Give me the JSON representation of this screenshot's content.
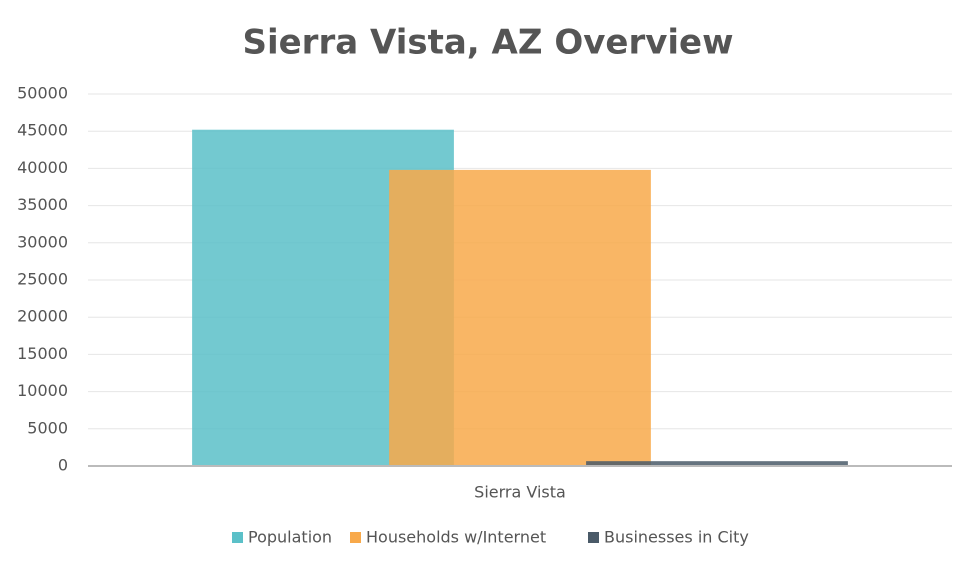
{
  "chart_data": {
    "type": "bar",
    "title": "Sierra Vista, AZ Overview",
    "categories": [
      "Sierra Vista"
    ],
    "series": [
      {
        "name": "Population",
        "color": "#5bc0c8",
        "values": [
          45200
        ]
      },
      {
        "name": "Households w/Internet",
        "color": "#f8a94a",
        "values": [
          39800
        ]
      },
      {
        "name": "Businesses in City",
        "color": "#4a5a68",
        "values": [
          650
        ]
      }
    ],
    "ylim": [
      0,
      50000
    ],
    "yticks": [
      0,
      5000,
      10000,
      15000,
      20000,
      25000,
      30000,
      35000,
      40000,
      45000,
      50000
    ],
    "grid": true,
    "legend": "bottom"
  }
}
